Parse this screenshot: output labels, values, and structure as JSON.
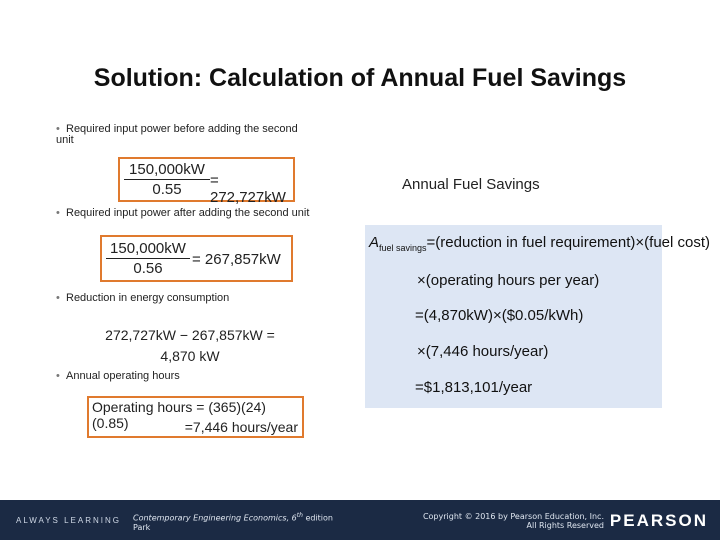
{
  "title": "Solution: Calculation of Annual Fuel Savings",
  "bullets": {
    "b1": "Required input power before adding the second unit",
    "b2": "Required input power after adding the second unit",
    "b3": "Reduction in energy consumption",
    "b4": "Annual operating hours"
  },
  "eq1": {
    "num": "150,000kW",
    "den": "0.55",
    "result": "= 272,727kW"
  },
  "eq2": {
    "num": "150,000kW",
    "den": "0.56",
    "result": "= 267,857kW"
  },
  "eq3": {
    "line1": "272,727kW − 267,857kW =",
    "line2": "4,870 kW"
  },
  "eq4": {
    "line1": "Operating hours = (365)(24)(0.85)",
    "line2": "=7,446 hours/year"
  },
  "right_label": "Annual Fuel Savings",
  "panel": {
    "l1_A": "A",
    "l1_sub": "fuel savings",
    "l1_rest": "=(reduction in fuel requirement)×(fuel cost)",
    "l2": "×(operating hours per year)",
    "l3": "=(4,870kW)×($0.05/kWh)",
    "l4": "×(7,446 hours/year)",
    "l5": "=$1,813,101/year"
  },
  "footer": {
    "always": "ALWAYS LEARNING",
    "book_italic": "Contemporary Engineering Economics, 6",
    "book_sup": "th",
    "book_rest": " edition",
    "book_line2": "Park",
    "copyright1": "Copyright © 2016 by Pearson Education, Inc.",
    "copyright2": "All Rights Reserved",
    "pearson": "PEARSON"
  },
  "colors": {
    "box_border": "#e07a2e",
    "panel_bg": "#dde6f4",
    "footer_bg": "#1b2a44"
  }
}
